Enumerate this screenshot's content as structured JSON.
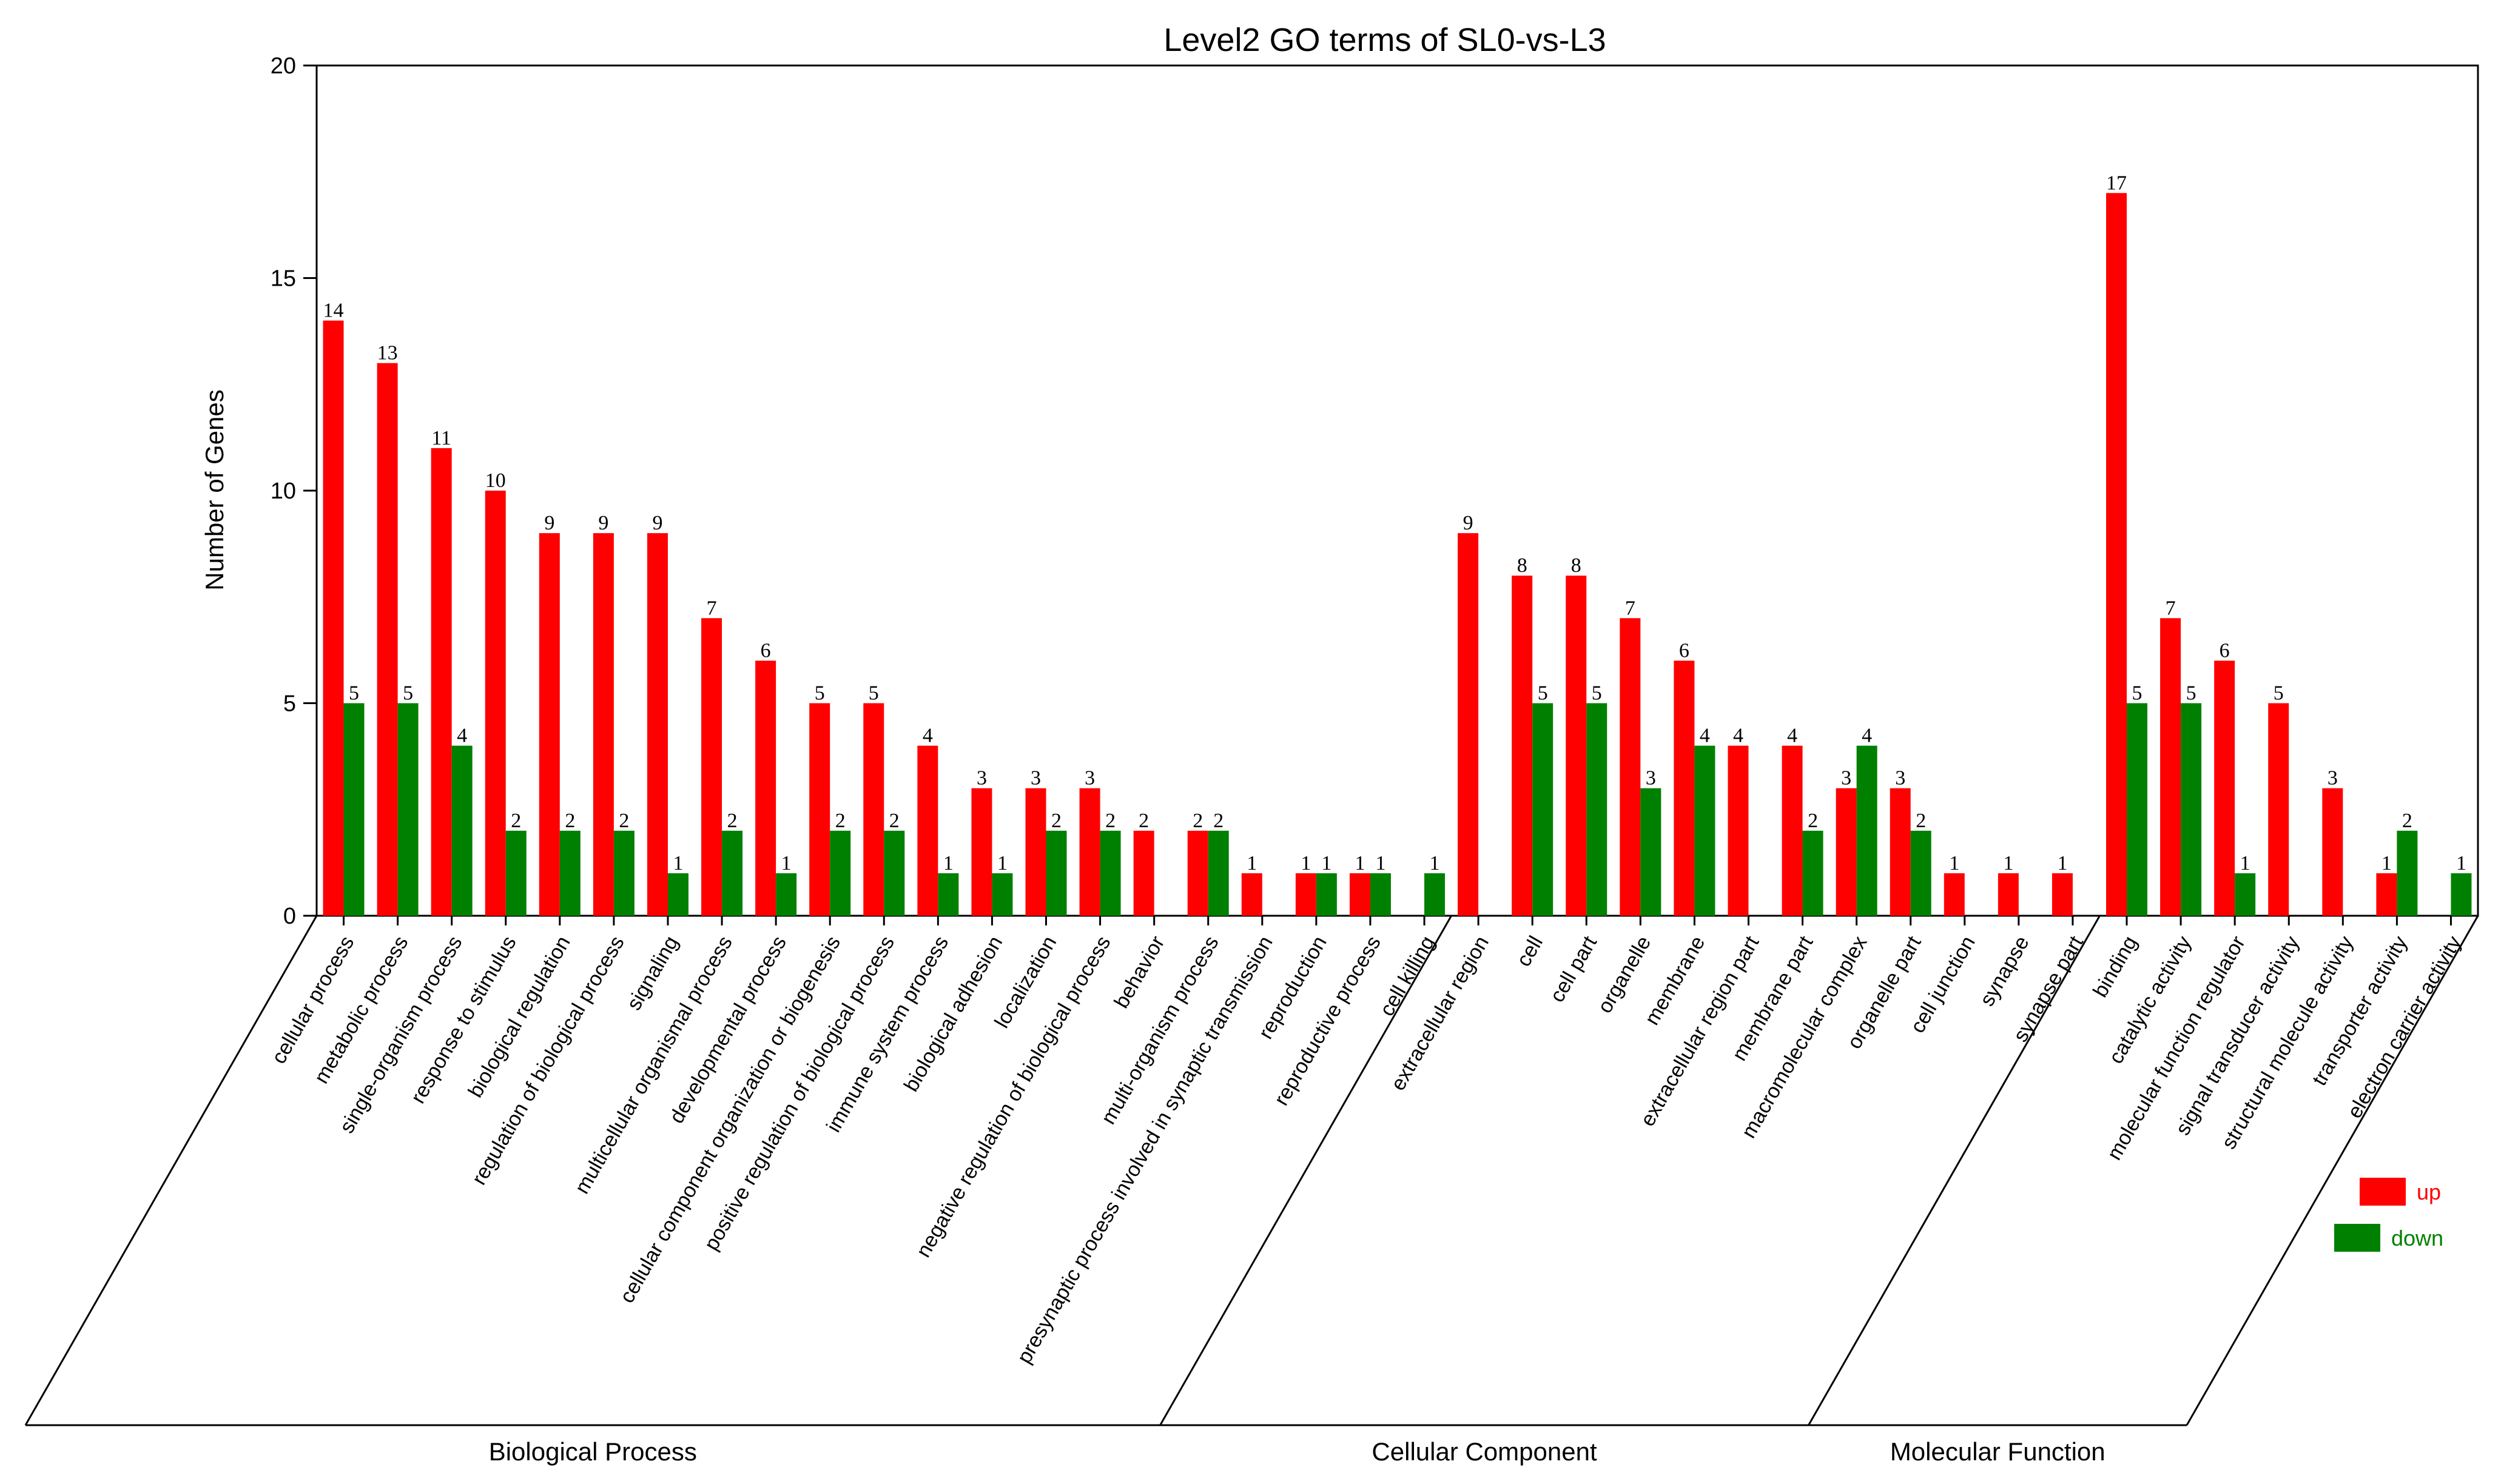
{
  "chart_data": {
    "type": "bar",
    "title": "Level2 GO terms of SL0-vs-L3",
    "xlabel": "",
    "ylabel": "Number of Genes",
    "ylim": [
      0,
      20
    ],
    "yticks": [
      0,
      5,
      10,
      15,
      20
    ],
    "grid": false,
    "legend_position": "right",
    "categories": [
      "cellular process",
      "metabolic process",
      "single-organism process",
      "response to stimulus",
      "biological regulation",
      "regulation of biological process",
      "signaling",
      "multicellular organismal process",
      "developmental process",
      "cellular component organization or biogenesis",
      "positive regulation of biological process",
      "immune system process",
      "biological adhesion",
      "localization",
      "negative regulation of biological process",
      "behavior",
      "multi-organism process",
      "presynaptic process involved in synaptic transmission",
      "reproduction",
      "reproductive process",
      "cell killing",
      "extracellular region",
      "cell",
      "cell part",
      "organelle",
      "membrane",
      "extracellular region part",
      "membrane part",
      "macromolecular complex",
      "organelle part",
      "cell junction",
      "synapse",
      "synapse part",
      "binding",
      "catalytic activity",
      "molecular function regulator",
      "signal transducer activity",
      "structural molecule activity",
      "transporter activity",
      "electron carrier activity"
    ],
    "series": [
      {
        "name": "up",
        "color": "#ff0000",
        "values": [
          14,
          13,
          11,
          10,
          9,
          9,
          9,
          7,
          6,
          5,
          5,
          4,
          3,
          3,
          3,
          2,
          2,
          1,
          1,
          1,
          0,
          9,
          8,
          8,
          7,
          6,
          4,
          4,
          3,
          3,
          1,
          1,
          1,
          17,
          7,
          6,
          5,
          3,
          1,
          0
        ]
      },
      {
        "name": "down",
        "color": "#008000",
        "values": [
          5,
          5,
          4,
          2,
          2,
          2,
          1,
          2,
          1,
          2,
          2,
          1,
          1,
          2,
          2,
          0,
          2,
          0,
          1,
          1,
          1,
          0,
          5,
          5,
          3,
          4,
          0,
          2,
          4,
          2,
          0,
          0,
          0,
          5,
          5,
          1,
          0,
          0,
          2,
          1
        ]
      }
    ],
    "groups": [
      {
        "name": "Biological Process",
        "start": 0,
        "end": 20
      },
      {
        "name": "Cellular Component",
        "start": 21,
        "end": 32
      },
      {
        "name": "Molecular Function",
        "start": 33,
        "end": 39
      }
    ]
  }
}
